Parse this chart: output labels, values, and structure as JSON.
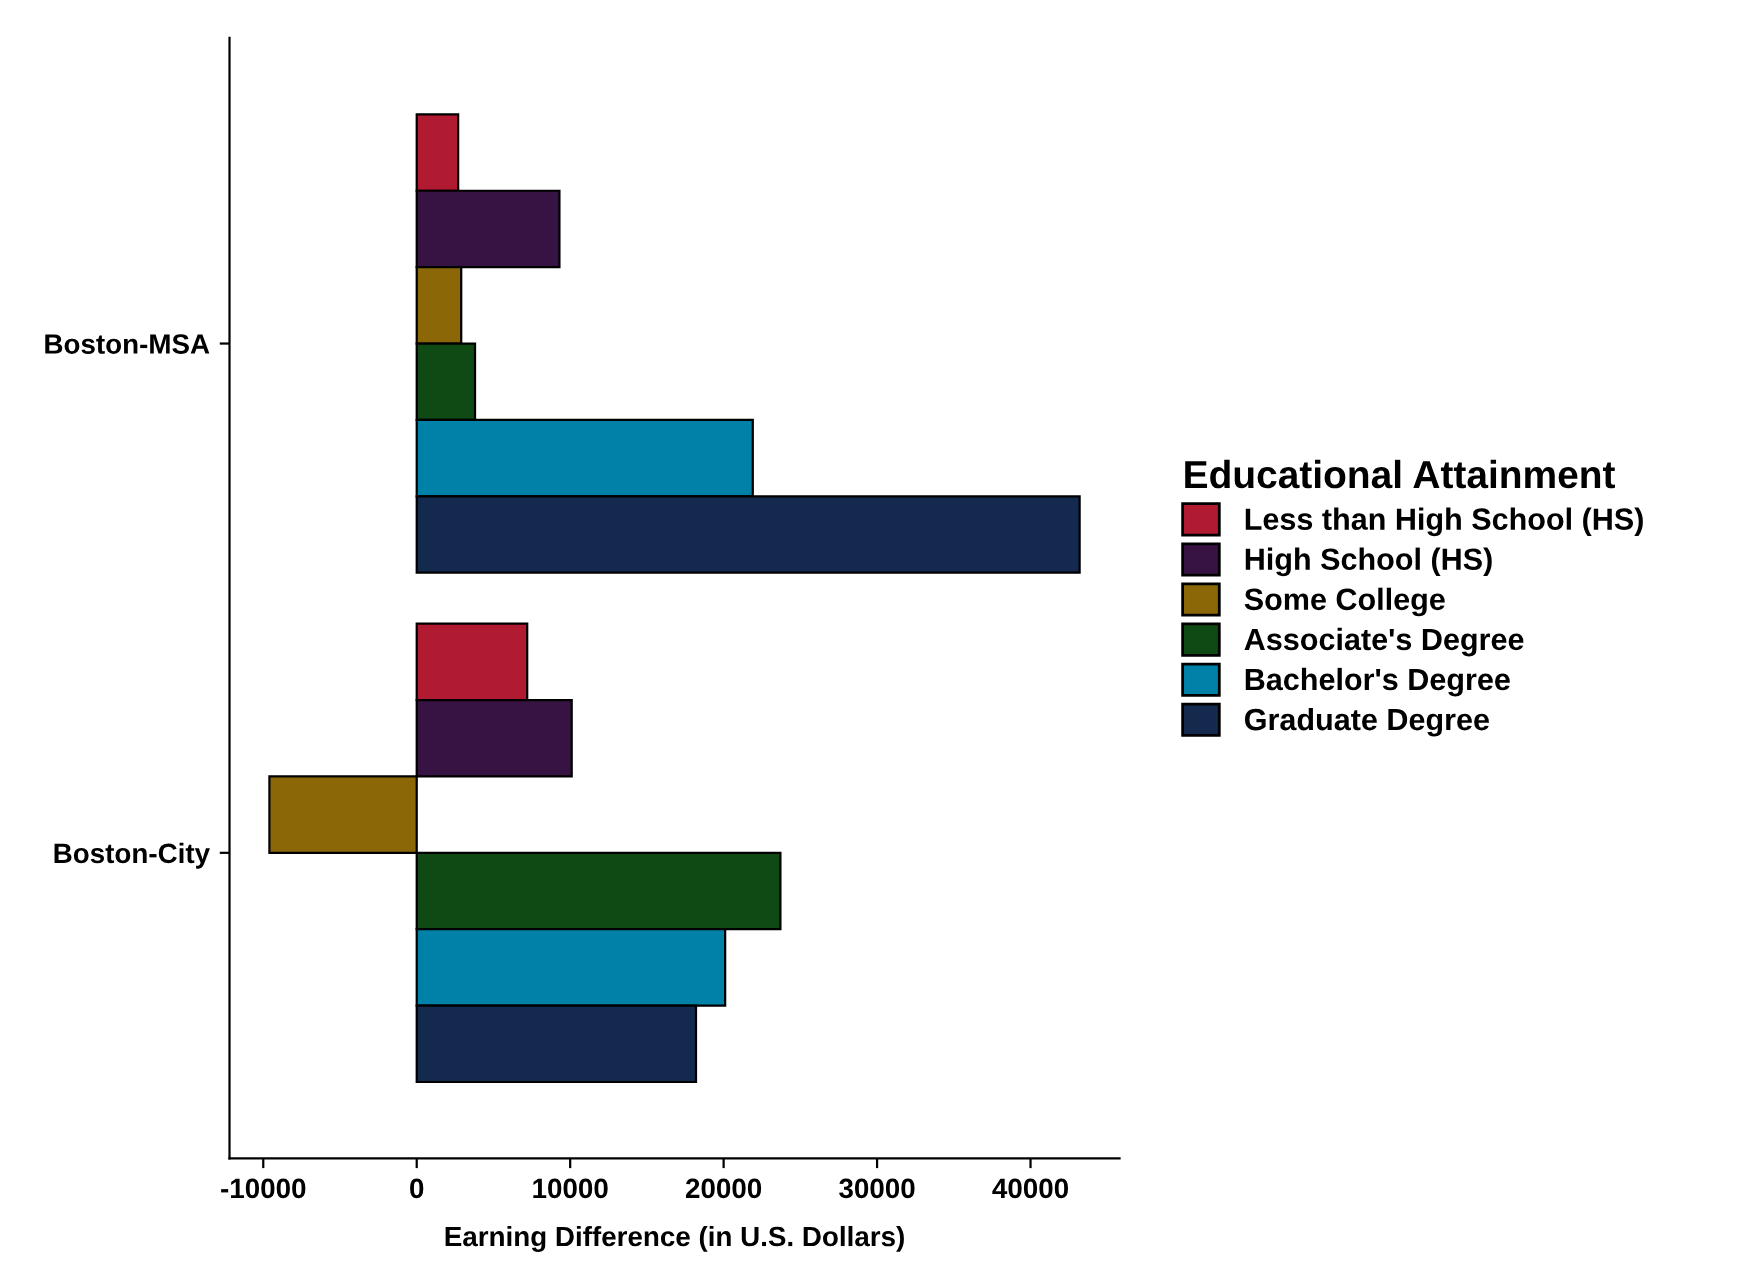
{
  "chart_data": {
    "type": "bar",
    "orientation": "horizontal",
    "xlabel": "Earning Difference (in U.S. Dollars)",
    "legend_title": "Educational Attainment",
    "legend": "right",
    "categories": [
      "Boston-MSA",
      "Boston-City"
    ],
    "series": [
      {
        "name": "Less than High School (HS)",
        "color": "#b01b31",
        "values": [
          2700,
          7200
        ]
      },
      {
        "name": "High School (HS)",
        "color": "#371343",
        "values": [
          9300,
          10100
        ]
      },
      {
        "name": "Some College",
        "color": "#8b6708",
        "values": [
          2900,
          -9600
        ]
      },
      {
        "name": "Associate's Degree",
        "color": "#0f4a15",
        "values": [
          3800,
          23700
        ]
      },
      {
        "name": "Bachelor's Degree",
        "color": "#0081a8",
        "values": [
          21900,
          20100
        ]
      },
      {
        "name": "Graduate Degree",
        "color": "#132a4e",
        "values": [
          43200,
          18200
        ]
      }
    ],
    "xlim": [
      -12200,
      45800
    ],
    "xticks": [
      -10000,
      0,
      10000,
      20000,
      30000,
      40000
    ],
    "grid": false
  }
}
